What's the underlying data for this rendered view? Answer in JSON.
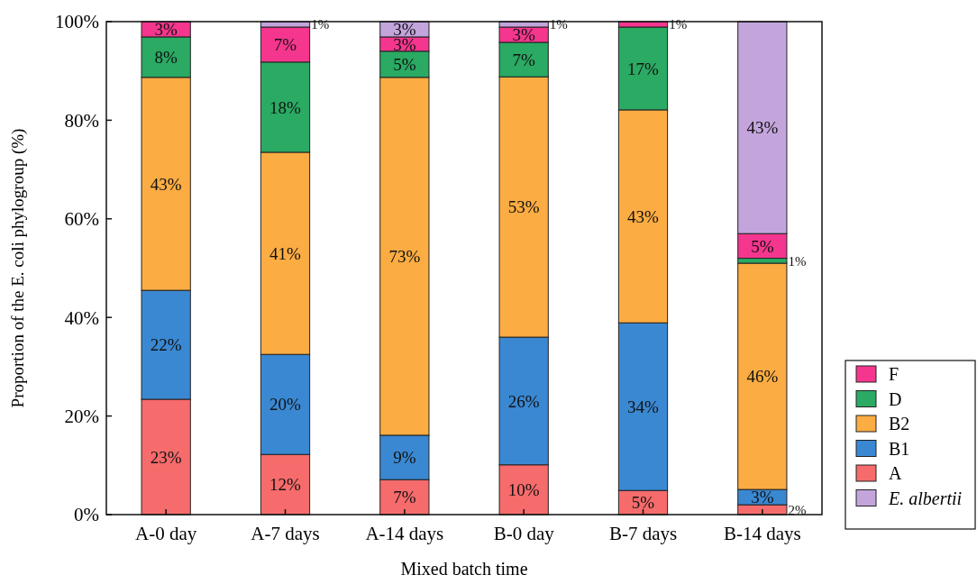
{
  "chart_data": {
    "type": "bar",
    "stacked": true,
    "xlabel": "Mixed batch time",
    "ylabel": "Proportion of the E. coli phylogroup (%)",
    "categories": [
      "A-0 day",
      "A-7 days",
      "A-14 days",
      "B-0 day",
      "B-7 days",
      "B-14 days"
    ],
    "ylim": [
      0,
      100
    ],
    "yticks": [
      {
        "value": 0,
        "label": "0%"
      },
      {
        "value": 20,
        "label": "20%"
      },
      {
        "value": 40,
        "label": "40%"
      },
      {
        "value": 60,
        "label": "60%"
      },
      {
        "value": 80,
        "label": "80%"
      },
      {
        "value": 100,
        "label": "100%"
      }
    ],
    "legend": "bottom right",
    "series": [
      {
        "name": "A",
        "color": "#f66b6b",
        "values": [
          23.4,
          12.2,
          7.1,
          10.1,
          4.9,
          2.0
        ],
        "value_labels": [
          "23%",
          "12%",
          "7%",
          "10%",
          "5%",
          "2%"
        ]
      },
      {
        "name": "B1",
        "color": "#3a88d2",
        "values": [
          22.1,
          20.3,
          9.0,
          25.9,
          34.0,
          3.1
        ],
        "value_labels": [
          "22%",
          "20%",
          "9%",
          "26%",
          "34%",
          "3%"
        ]
      },
      {
        "name": "B2",
        "color": "#fbac42",
        "values": [
          43.2,
          41.0,
          72.6,
          52.8,
          43.2,
          45.9
        ],
        "value_labels": [
          "43%",
          "41%",
          "73%",
          "53%",
          "43%",
          "46%"
        ]
      },
      {
        "name": "D",
        "color": "#2aaa63",
        "values": [
          8.2,
          18.3,
          5.3,
          7.0,
          16.8,
          1.0
        ],
        "value_labels": [
          "8%",
          "18%",
          "5%",
          "7%",
          "17%",
          "1%"
        ]
      },
      {
        "name": "F",
        "color": "#f5368e",
        "values": [
          3.1,
          7.1,
          2.9,
          3.1,
          1.1,
          5.0
        ],
        "value_labels": [
          "3%",
          "7%",
          "3%",
          "3%",
          "1%",
          "5%"
        ]
      },
      {
        "name": "E. albertii",
        "color": "#c3a5dc",
        "values": [
          null,
          1.1,
          3.1,
          1.1,
          null,
          43.0
        ],
        "value_labels": [
          null,
          "1%",
          "3%",
          "1%",
          null,
          "43%"
        ]
      }
    ]
  }
}
